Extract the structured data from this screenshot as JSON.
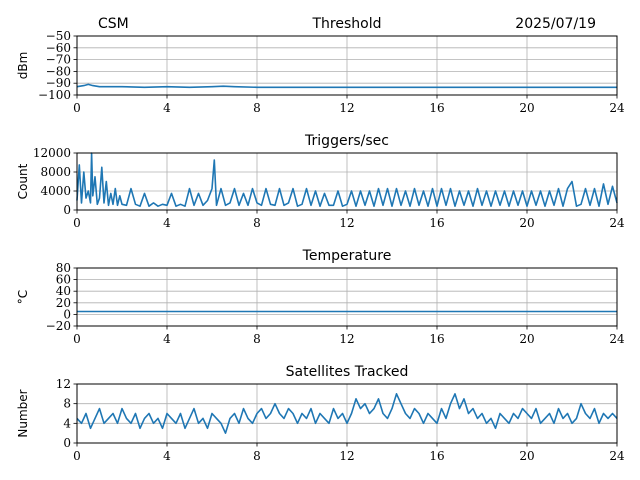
{
  "header": {
    "left_label": "CSM",
    "date": "2025/07/19"
  },
  "chart_data": [
    {
      "type": "line",
      "title": "Threshold",
      "ylabel": "dBm",
      "xlabel": "",
      "xlim": [
        0,
        24
      ],
      "ylim": [
        -100,
        -50
      ],
      "xticks": [
        0,
        4,
        8,
        12,
        16,
        20,
        24
      ],
      "yticks": [
        -100,
        -90,
        -80,
        -70,
        -60,
        -50
      ],
      "grid": true,
      "color": "#1f77b4",
      "series": [
        {
          "x": [
            0,
            0.3,
            0.5,
            0.7,
            1,
            2,
            3,
            4,
            5,
            6,
            6.5,
            7,
            8,
            10,
            12,
            14,
            16,
            18,
            20,
            22,
            24
          ],
          "values": [
            -93,
            -92,
            -91,
            -92,
            -93,
            -93,
            -93.5,
            -93,
            -93.5,
            -93,
            -92.5,
            -93,
            -93.5,
            -93.5,
            -93.5,
            -93.5,
            -93.5,
            -93.5,
            -93.5,
            -93.5,
            -93.5
          ]
        }
      ]
    },
    {
      "type": "line",
      "title": "Triggers/sec",
      "ylabel": "Count",
      "xlabel": "",
      "xlim": [
        0,
        24
      ],
      "ylim": [
        0,
        12000
      ],
      "xticks": [
        0,
        4,
        8,
        12,
        16,
        20,
        24
      ],
      "yticks": [
        0,
        4000,
        8000,
        12000
      ],
      "grid": true,
      "color": "#1f77b4",
      "series": [
        {
          "x": [
            0,
            0.1,
            0.2,
            0.3,
            0.4,
            0.5,
            0.6,
            0.65,
            0.7,
            0.8,
            0.9,
            1.0,
            1.1,
            1.2,
            1.3,
            1.4,
            1.5,
            1.6,
            1.7,
            1.8,
            1.9,
            2.0,
            2.2,
            2.4,
            2.6,
            2.8,
            3.0,
            3.2,
            3.4,
            3.6,
            3.8,
            4.0,
            4.2,
            4.4,
            4.6,
            4.8,
            5.0,
            5.2,
            5.4,
            5.6,
            5.8,
            6.0,
            6.1,
            6.2,
            6.4,
            6.6,
            6.8,
            7.0,
            7.2,
            7.4,
            7.6,
            7.8,
            8.0,
            8.2,
            8.4,
            8.6,
            8.8,
            9.0,
            9.2,
            9.4,
            9.6,
            9.8,
            10.0,
            10.2,
            10.4,
            10.6,
            10.8,
            11.0,
            11.2,
            11.4,
            11.6,
            11.8,
            12.0,
            12.2,
            12.4,
            12.6,
            12.8,
            13.0,
            13.2,
            13.4,
            13.6,
            13.8,
            14.0,
            14.2,
            14.4,
            14.6,
            14.8,
            15.0,
            15.2,
            15.4,
            15.6,
            15.8,
            16.0,
            16.2,
            16.4,
            16.6,
            16.8,
            17.0,
            17.2,
            17.4,
            17.6,
            17.8,
            18.0,
            18.2,
            18.4,
            18.6,
            18.8,
            19.0,
            19.2,
            19.4,
            19.6,
            19.8,
            20.0,
            20.2,
            20.4,
            20.6,
            20.8,
            21.0,
            21.2,
            21.4,
            21.6,
            21.8,
            22.0,
            22.2,
            22.4,
            22.6,
            22.8,
            23.0,
            23.2,
            23.4,
            23.6,
            23.8,
            24.0
          ],
          "values": [
            2000,
            9500,
            1500,
            8000,
            2500,
            4000,
            1500,
            12000,
            3000,
            7000,
            1200,
            2500,
            9000,
            1500,
            6000,
            1000,
            3500,
            1200,
            4500,
            1000,
            3000,
            1200,
            1000,
            4500,
            1200,
            800,
            3500,
            800,
            1500,
            800,
            1200,
            1000,
            3500,
            800,
            1200,
            800,
            4500,
            1000,
            3500,
            1000,
            2000,
            4500,
            10500,
            1000,
            4500,
            1000,
            1500,
            4500,
            1000,
            3500,
            1000,
            4500,
            1500,
            1000,
            4500,
            1200,
            1000,
            4500,
            1000,
            1500,
            4500,
            800,
            1200,
            4500,
            1000,
            4000,
            800,
            3500,
            1000,
            1000,
            4000,
            800,
            1200,
            4000,
            800,
            4000,
            1000,
            4000,
            800,
            4500,
            1000,
            4500,
            800,
            4500,
            1000,
            4000,
            800,
            4500,
            1000,
            4000,
            800,
            4500,
            800,
            4500,
            1000,
            4500,
            800,
            4000,
            1000,
            4000,
            800,
            4500,
            1000,
            4000,
            800,
            4000,
            1000,
            4000,
            800,
            4000,
            1000,
            4000,
            800,
            4000,
            1000,
            4000,
            800,
            4000,
            1000,
            4500,
            800,
            4500,
            6000,
            800,
            1200,
            4500,
            1000,
            4500,
            800,
            5500,
            1200,
            5000,
            1500
          ]
        }
      ]
    },
    {
      "type": "line",
      "title": "Temperature",
      "ylabel": "°C",
      "xlabel": "",
      "xlim": [
        0,
        24
      ],
      "ylim": [
        -20,
        80
      ],
      "xticks": [
        0,
        4,
        8,
        12,
        16,
        20,
        24
      ],
      "yticks": [
        -20,
        0,
        20,
        40,
        60,
        80
      ],
      "grid": true,
      "color": "#1f77b4",
      "series": [
        {
          "x": [
            0,
            24
          ],
          "values": [
            5,
            5
          ]
        }
      ]
    },
    {
      "type": "line",
      "title": "Satellites Tracked",
      "ylabel": "Number",
      "xlabel": "",
      "xlim": [
        0,
        24
      ],
      "ylim": [
        0,
        12
      ],
      "xticks": [
        0,
        4,
        8,
        12,
        16,
        20,
        24
      ],
      "yticks": [
        0,
        4,
        8,
        12
      ],
      "grid": true,
      "color": "#1f77b4",
      "series": [
        {
          "x": [
            0,
            0.2,
            0.4,
            0.6,
            0.8,
            1.0,
            1.2,
            1.4,
            1.6,
            1.8,
            2.0,
            2.2,
            2.4,
            2.6,
            2.8,
            3.0,
            3.2,
            3.4,
            3.6,
            3.8,
            4.0,
            4.2,
            4.4,
            4.6,
            4.8,
            5.0,
            5.2,
            5.4,
            5.6,
            5.8,
            6.0,
            6.2,
            6.4,
            6.6,
            6.8,
            7.0,
            7.2,
            7.4,
            7.6,
            7.8,
            8.0,
            8.2,
            8.4,
            8.6,
            8.8,
            9.0,
            9.2,
            9.4,
            9.6,
            9.8,
            10.0,
            10.2,
            10.4,
            10.6,
            10.8,
            11.0,
            11.2,
            11.4,
            11.6,
            11.8,
            12.0,
            12.2,
            12.4,
            12.6,
            12.8,
            13.0,
            13.2,
            13.4,
            13.6,
            13.8,
            14.0,
            14.2,
            14.4,
            14.6,
            14.8,
            15.0,
            15.2,
            15.4,
            15.6,
            15.8,
            16.0,
            16.2,
            16.4,
            16.6,
            16.8,
            17.0,
            17.2,
            17.4,
            17.6,
            17.8,
            18.0,
            18.2,
            18.4,
            18.6,
            18.8,
            19.0,
            19.2,
            19.4,
            19.6,
            19.8,
            20.0,
            20.2,
            20.4,
            20.6,
            20.8,
            21.0,
            21.2,
            21.4,
            21.6,
            21.8,
            22.0,
            22.2,
            22.4,
            22.6,
            22.8,
            23.0,
            23.2,
            23.4,
            23.6,
            23.8,
            24.0
          ],
          "values": [
            5,
            4,
            6,
            3,
            5,
            7,
            4,
            5,
            6,
            4,
            7,
            5,
            4,
            6,
            3,
            5,
            6,
            4,
            5,
            3,
            6,
            5,
            4,
            6,
            3,
            5,
            7,
            4,
            5,
            3,
            6,
            5,
            4,
            2,
            5,
            6,
            4,
            7,
            5,
            4,
            6,
            7,
            5,
            6,
            8,
            6,
            5,
            7,
            6,
            4,
            6,
            5,
            7,
            4,
            6,
            5,
            4,
            7,
            5,
            6,
            4,
            6,
            9,
            7,
            8,
            6,
            7,
            9,
            6,
            5,
            7,
            10,
            8,
            6,
            5,
            7,
            6,
            4,
            6,
            5,
            4,
            7,
            5,
            8,
            10,
            7,
            9,
            6,
            7,
            5,
            6,
            4,
            5,
            3,
            6,
            5,
            4,
            6,
            5,
            7,
            6,
            5,
            7,
            4,
            5,
            6,
            4,
            7,
            5,
            6,
            4,
            5,
            8,
            6,
            5,
            7,
            4,
            6,
            5,
            6,
            5
          ]
        }
      ]
    }
  ]
}
